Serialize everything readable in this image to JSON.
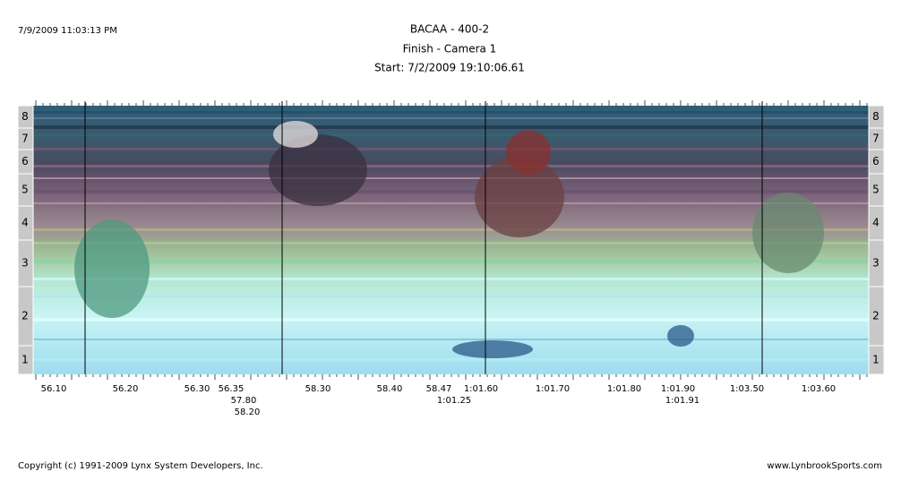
{
  "header": {
    "timestamp": "7/9/2009 11:03:13 PM",
    "title": "BACAA - 400-2",
    "camera": "Finish - Camera 1",
    "start": "Start: 7/2/2009 19:10:06.61"
  },
  "lanes": [
    "8",
    "7",
    "6",
    "5",
    "4",
    "3",
    "2",
    "1"
  ],
  "time_labels": {
    "row1": [
      "56.10",
      "56.20",
      "56.30",
      "56.35",
      "58.30",
      "58.40",
      "58.47",
      "1:01.60",
      "1:01.70",
      "1:01.80",
      "1:01.90",
      "1:03.50",
      "1:03.60"
    ],
    "row2": [
      "57.80",
      "1:01.25",
      "1:01.91"
    ],
    "row3": [
      "58.20"
    ]
  },
  "footer": {
    "copyright": "Copyright (c) 1991-2009 Lynx System Developers, Inc.",
    "site": "www.LynbrookSports.com"
  }
}
